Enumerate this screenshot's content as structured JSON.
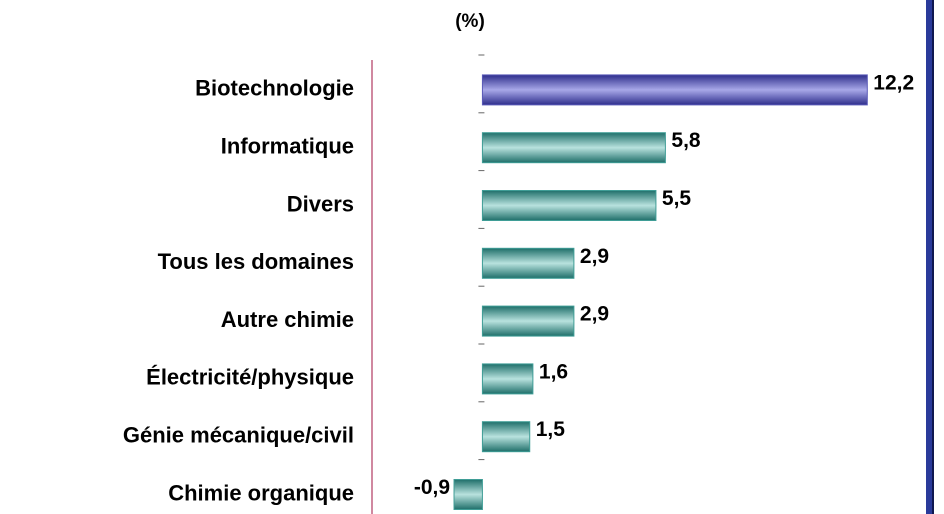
{
  "chart_data": {
    "type": "hbar",
    "title": "(%)",
    "categories": [
      "Biotechnologie",
      "Informatique",
      "Divers",
      "Tous les domaines",
      "Autre chimie",
      "Électricité/physique",
      "Génie mécanique/civil",
      "Chimie organique"
    ],
    "values": [
      12.2,
      5.8,
      5.5,
      2.9,
      2.9,
      1.6,
      1.5,
      -0.9
    ],
    "value_labels": [
      "12,2",
      "5,8",
      "5,5",
      "2,9",
      "2,9",
      "1,6",
      "1,5",
      "-0,9"
    ],
    "colors": [
      "#5a5ab8",
      "#3f9d96",
      "#3f9d96",
      "#3f9d96",
      "#3f9d96",
      "#3f9d96",
      "#3f9d96",
      "#3f9d96"
    ],
    "xlim": [
      -3.5,
      13.3
    ]
  }
}
